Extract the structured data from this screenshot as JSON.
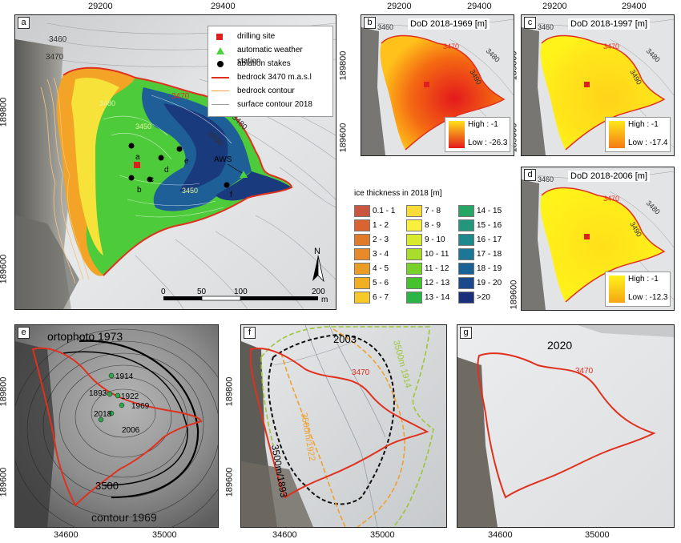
{
  "panel_a": {
    "letter": "a",
    "x_ticks": [
      "29200",
      "29400"
    ],
    "y_ticks": [
      "189800",
      "189600"
    ],
    "legend": [
      {
        "symbol": "red-square",
        "label": "drilling site"
      },
      {
        "symbol": "green-triangle",
        "label": "automatic weather station"
      },
      {
        "symbol": "black-dot",
        "label": "ablation stakes"
      },
      {
        "symbol": "red-line",
        "label": "bedrock 3470 m.a.s.l"
      },
      {
        "symbol": "orange-line",
        "label": "bedrock contour"
      },
      {
        "symbol": "grey-line",
        "label": "surface contour 2018"
      }
    ],
    "contour_labels": [
      "3460",
      "3470",
      "3470",
      "3480",
      "3490",
      "3480",
      "3450",
      "3450"
    ],
    "stake_labels": [
      "a",
      "b",
      "c",
      "d",
      "e",
      "f"
    ],
    "aws_label": "AWS",
    "scale": {
      "labels": [
        "0",
        "50",
        "100",
        "200"
      ],
      "unit": "m"
    },
    "north": "N"
  },
  "dod_panels": [
    {
      "letter": "b",
      "title": "DoD 2018-1969 [m]",
      "x_ticks": [
        "29200",
        "29400"
      ],
      "y_ticks": [
        "189800",
        "189600"
      ],
      "high": "High : -1",
      "low": "Low : -26.3",
      "contour_labels": [
        "3470",
        "3460",
        "3480",
        "3470",
        "3490"
      ],
      "grad_from": "#ffe01a",
      "grad_to": "#e41a1c"
    },
    {
      "letter": "c",
      "title": "DoD 2018-1997 [m]",
      "x_ticks": [
        "29200",
        "29400"
      ],
      "y_ticks": [],
      "high": "High : -1",
      "low": "Low : -17.4",
      "contour_labels": [
        "3470",
        "3460",
        "3480",
        "3470",
        "3490"
      ],
      "grad_from": "#ffe81a",
      "grad_to": "#f47a14"
    },
    {
      "letter": "d",
      "title": "DoD 2018-2006 [m]",
      "x_ticks": [],
      "y_ticks": [
        "189600"
      ],
      "high": "High : -1",
      "low": "Low : -12.3",
      "contour_labels": [
        "3470",
        "3460",
        "3480",
        "3470",
        "3490"
      ],
      "grad_from": "#fff21a",
      "grad_to": "#f5a614"
    }
  ],
  "thickness_legend": {
    "title": "ice thickness in 2018 [m]",
    "classes": [
      {
        "label": "0.1 - 1",
        "color": "#c8553d"
      },
      {
        "label": "1 - 2",
        "color": "#d9642f"
      },
      {
        "label": "2 - 3",
        "color": "#e07a2c"
      },
      {
        "label": "3 - 4",
        "color": "#e88a28"
      },
      {
        "label": "4 - 5",
        "color": "#eb9c24"
      },
      {
        "label": "5 - 6",
        "color": "#f0b021"
      },
      {
        "label": "6 - 7",
        "color": "#f6c928"
      },
      {
        "label": "7 - 8",
        "color": "#f9dc3a"
      },
      {
        "label": "8 - 9",
        "color": "#f9ef3c"
      },
      {
        "label": "9 - 10",
        "color": "#d8ea2e"
      },
      {
        "label": "10 - 11",
        "color": "#a9dd2b"
      },
      {
        "label": "11 - 12",
        "color": "#78d02b"
      },
      {
        "label": "12 - 13",
        "color": "#47c22f"
      },
      {
        "label": "13 - 14",
        "color": "#2db446"
      },
      {
        "label": "14 - 15",
        "color": "#27a564"
      },
      {
        "label": "15 - 16",
        "color": "#22977c"
      },
      {
        "label": "16 - 17",
        "color": "#1e888c"
      },
      {
        "label": "17 - 18",
        "color": "#1b7795"
      },
      {
        "label": "18 - 19",
        "color": "#1a6195"
      },
      {
        "label": "19 - 20",
        "color": "#1a4a8c"
      },
      {
        ">20": "",
        "label": ">20",
        "color": "#1a307a"
      }
    ]
  },
  "panel_e": {
    "letter": "e",
    "title": "ortophoto 1973",
    "x_ticks": [
      "34600",
      "35000"
    ],
    "y_ticks": [
      "189800",
      "189600"
    ],
    "years": [
      "1914",
      "1893",
      "1922",
      "1969",
      "2018",
      "2006"
    ],
    "contour_3500": "3500",
    "contour_1969": "contour 1969"
  },
  "panel_f": {
    "letter": "f",
    "x_ticks": [
      "34600",
      "35000"
    ],
    "y_ticks": [
      "189800",
      "189600"
    ],
    "labels": {
      "y2003": "2003",
      "c3500_1914": "3500m 1914",
      "c3500_1922": "3500m/1922",
      "c3500_1893": "3500m/1893",
      "c3470": "3470"
    }
  },
  "panel_g": {
    "letter": "g",
    "x_ticks": [
      "34600",
      "35000"
    ],
    "y_ticks": [],
    "year": "2020",
    "c3470": "3470"
  }
}
